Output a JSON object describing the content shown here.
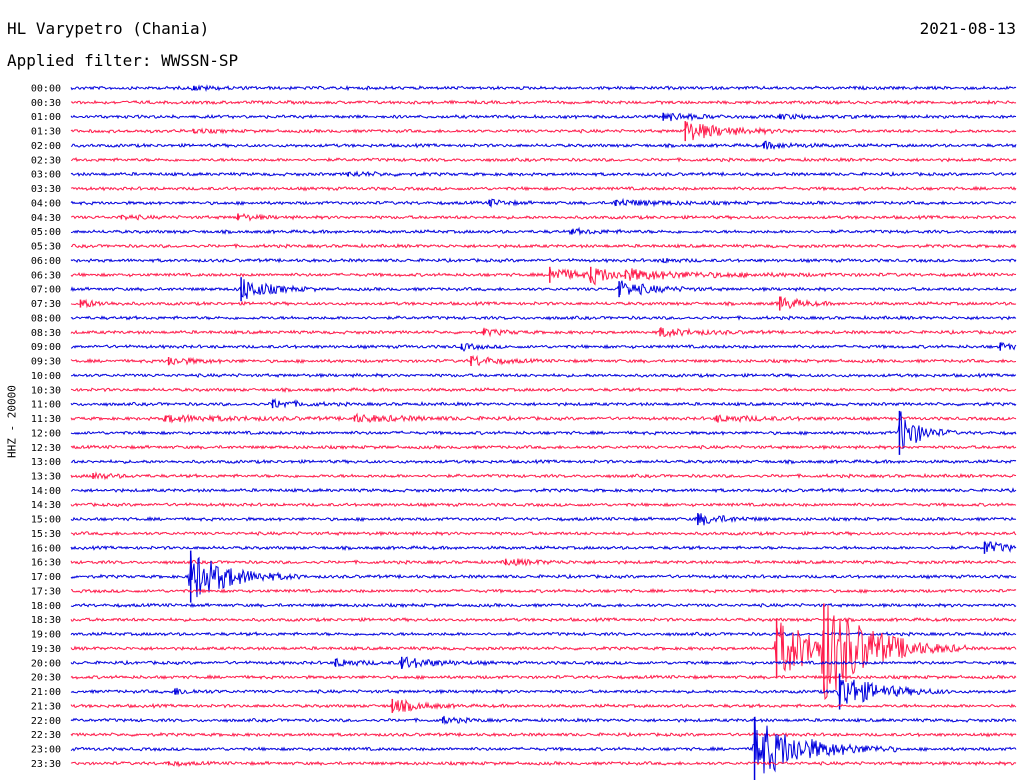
{
  "header": {
    "station": "HL Varypetro (Chania)",
    "date": "2021-08-13",
    "filter": "Applied filter: WWSSN-SP"
  },
  "colors": {
    "trace_a": "#0000dd",
    "trace_b": "#ff1a4a",
    "background": "#ffffff"
  },
  "chart_data": {
    "type": "line",
    "ylabel": "HHZ - 20000",
    "row_labels": [
      "00:00",
      "00:30",
      "01:00",
      "01:30",
      "02:00",
      "02:30",
      "03:00",
      "03:30",
      "04:00",
      "04:30",
      "05:00",
      "05:30",
      "06:00",
      "06:30",
      "07:00",
      "07:30",
      "08:00",
      "08:30",
      "09:00",
      "09:30",
      "10:00",
      "10:30",
      "11:00",
      "11:30",
      "12:00",
      "12:30",
      "13:00",
      "13:30",
      "14:00",
      "14:30",
      "15:00",
      "15:30",
      "16:00",
      "16:30",
      "17:00",
      "17:30",
      "18:00",
      "18:30",
      "19:00",
      "19:30",
      "20:00",
      "20:30",
      "21:00",
      "21:30",
      "22:00",
      "22:30",
      "23:00",
      "23:30"
    ],
    "row_minutes": 30,
    "events": [
      {
        "row": "00:00",
        "minute": 3.9,
        "amp": 2,
        "dur": 0.8
      },
      {
        "row": "01:00",
        "minute": 18.8,
        "amp": 4,
        "dur": 1.0
      },
      {
        "row": "01:00",
        "minute": 22.5,
        "amp": 2,
        "dur": 1.0
      },
      {
        "row": "01:30",
        "minute": 3.9,
        "amp": 2,
        "dur": 0.5
      },
      {
        "row": "01:30",
        "minute": 19.5,
        "amp": 10,
        "dur": 1.2
      },
      {
        "row": "02:00",
        "minute": 22.0,
        "amp": 3,
        "dur": 1.0
      },
      {
        "row": "03:00",
        "minute": 8.8,
        "amp": 2,
        "dur": 1.0
      },
      {
        "row": "04:00",
        "minute": 13.3,
        "amp": 3,
        "dur": 0.5
      },
      {
        "row": "04:00",
        "minute": 17.3,
        "amp": 3,
        "dur": 1.5
      },
      {
        "row": "04:30",
        "minute": 1.6,
        "amp": 2,
        "dur": 0.6
      },
      {
        "row": "04:30",
        "minute": 5.3,
        "amp": 3,
        "dur": 0.6
      },
      {
        "row": "05:00",
        "minute": 15.9,
        "amp": 2,
        "dur": 1.0
      },
      {
        "row": "06:00",
        "minute": 18.8,
        "amp": 2,
        "dur": 0.5
      },
      {
        "row": "06:30",
        "minute": 15.2,
        "amp": 8,
        "dur": 0.8
      },
      {
        "row": "06:30",
        "minute": 16.5,
        "amp": 8,
        "dur": 0.8
      },
      {
        "row": "06:30",
        "minute": 17.6,
        "amp": 4,
        "dur": 3.0
      },
      {
        "row": "07:00",
        "minute": 5.4,
        "amp": 12,
        "dur": 0.8
      },
      {
        "row": "07:00",
        "minute": 17.4,
        "amp": 8,
        "dur": 1.0
      },
      {
        "row": "07:30",
        "minute": 0.3,
        "amp": 4,
        "dur": 0.6
      },
      {
        "row": "07:30",
        "minute": 22.5,
        "amp": 7,
        "dur": 0.6
      },
      {
        "row": "08:30",
        "minute": 13.1,
        "amp": 3,
        "dur": 0.6
      },
      {
        "row": "08:30",
        "minute": 18.7,
        "amp": 4,
        "dur": 1.2
      },
      {
        "row": "09:00",
        "minute": 12.4,
        "amp": 3,
        "dur": 0.5
      },
      {
        "row": "09:00",
        "minute": 29.5,
        "amp": 4,
        "dur": 0.4
      },
      {
        "row": "09:30",
        "minute": 3.1,
        "amp": 4,
        "dur": 0.8
      },
      {
        "row": "09:30",
        "minute": 12.7,
        "amp": 5,
        "dur": 0.8
      },
      {
        "row": "11:00",
        "minute": 6.4,
        "amp": 4,
        "dur": 0.8
      },
      {
        "row": "11:30",
        "minute": 3.0,
        "amp": 3,
        "dur": 2.5
      },
      {
        "row": "11:30",
        "minute": 9.0,
        "amp": 3,
        "dur": 2.0
      },
      {
        "row": "11:30",
        "minute": 20.5,
        "amp": 3,
        "dur": 1.5
      },
      {
        "row": "12:00",
        "minute": 26.3,
        "amp": 22,
        "dur": 0.6
      },
      {
        "row": "13:30",
        "minute": 0.7,
        "amp": 3,
        "dur": 0.6
      },
      {
        "row": "15:00",
        "minute": 19.9,
        "amp": 6,
        "dur": 0.8
      },
      {
        "row": "16:00",
        "minute": 29.0,
        "amp": 6,
        "dur": 0.8
      },
      {
        "row": "16:30",
        "minute": 13.8,
        "amp": 3,
        "dur": 1.0
      },
      {
        "row": "17:00",
        "minute": 3.8,
        "amp": 26,
        "dur": 1.2
      },
      {
        "row": "19:30",
        "minute": 22.4,
        "amp": 30,
        "dur": 1.5
      },
      {
        "row": "19:30",
        "minute": 23.9,
        "amp": 45,
        "dur": 1.5
      },
      {
        "row": "20:00",
        "minute": 8.4,
        "amp": 4,
        "dur": 0.7
      },
      {
        "row": "20:00",
        "minute": 10.5,
        "amp": 6,
        "dur": 1.0
      },
      {
        "row": "21:00",
        "minute": 3.3,
        "amp": 3,
        "dur": 0.6
      },
      {
        "row": "21:00",
        "minute": 24.4,
        "amp": 18,
        "dur": 1.2
      },
      {
        "row": "21:30",
        "minute": 10.2,
        "amp": 7,
        "dur": 0.8
      },
      {
        "row": "22:00",
        "minute": 11.8,
        "amp": 3,
        "dur": 0.6
      },
      {
        "row": "23:00",
        "minute": 21.7,
        "amp": 32,
        "dur": 1.5
      },
      {
        "row": "23:30",
        "minute": 3.1,
        "amp": 2,
        "dur": 0.5
      }
    ]
  }
}
